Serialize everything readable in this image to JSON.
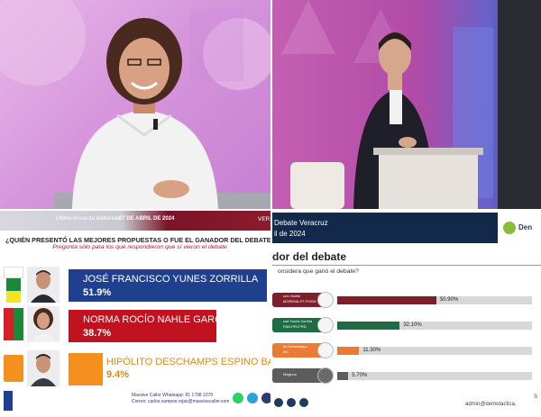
{
  "poll_left": {
    "survey_label": "Última encuesta elaborada:",
    "survey_date": "27 DE ABRIL DE 2024",
    "edge_text": "VER",
    "question": "¿QUIÉN PRESENTÓ LAS MEJORES PROPUESTAS O FUE EL GANADOR DEL DEBATE?",
    "subtitle": "Pregunta sólo para los que respondieron que sí vieron el debate",
    "results": [
      {
        "name": "JOSÉ FRANCISCO YUNES ZORRILLA",
        "value": "51.9%",
        "color": "#1f3f8f"
      },
      {
        "name": "NORMA ROCÍO NAHLE GARCÍA",
        "value": "38.7%",
        "color": "#c0121f"
      },
      {
        "name": "HIPÓLITO DESCHAMPS ESPINO BARROS",
        "value": "9.4%",
        "color": "#f5901e"
      }
    ],
    "footer_whatsapp": "Massive Caller Whatsapp: 81 1798 1079",
    "footer_email": "Correo: carlos.campos.rojas@massivecaller.com"
  },
  "poll_right": {
    "title": "Debate Veracruz",
    "date": "il de 2024",
    "logo_text": "Den",
    "heading": "dor del debate",
    "question": "onsidera que ganó el debate?",
    "results": [
      {
        "label": "ocío Nahle",
        "sublabel": "MORENA-PT-PVEM",
        "value": "50.90%",
        "pct": 50.9,
        "color": "#7d1e2a"
      },
      {
        "label": "osé Yunes Zorrilla",
        "sublabel": "PAN-PRI-PRD",
        "value": "32.10%",
        "pct": 32.1,
        "color": "#1f6b45"
      },
      {
        "label": "ito Deschamps",
        "sublabel": "MC",
        "value": "11.30%",
        "pct": 11.3,
        "color": "#ea7b36"
      },
      {
        "label": "Ninguno",
        "sublabel": "",
        "value": "5.70%",
        "pct": 5.7,
        "color": "#5c5c5c"
      }
    ],
    "footer_email": "admin@demotactica.",
    "footer_s": "S"
  }
}
